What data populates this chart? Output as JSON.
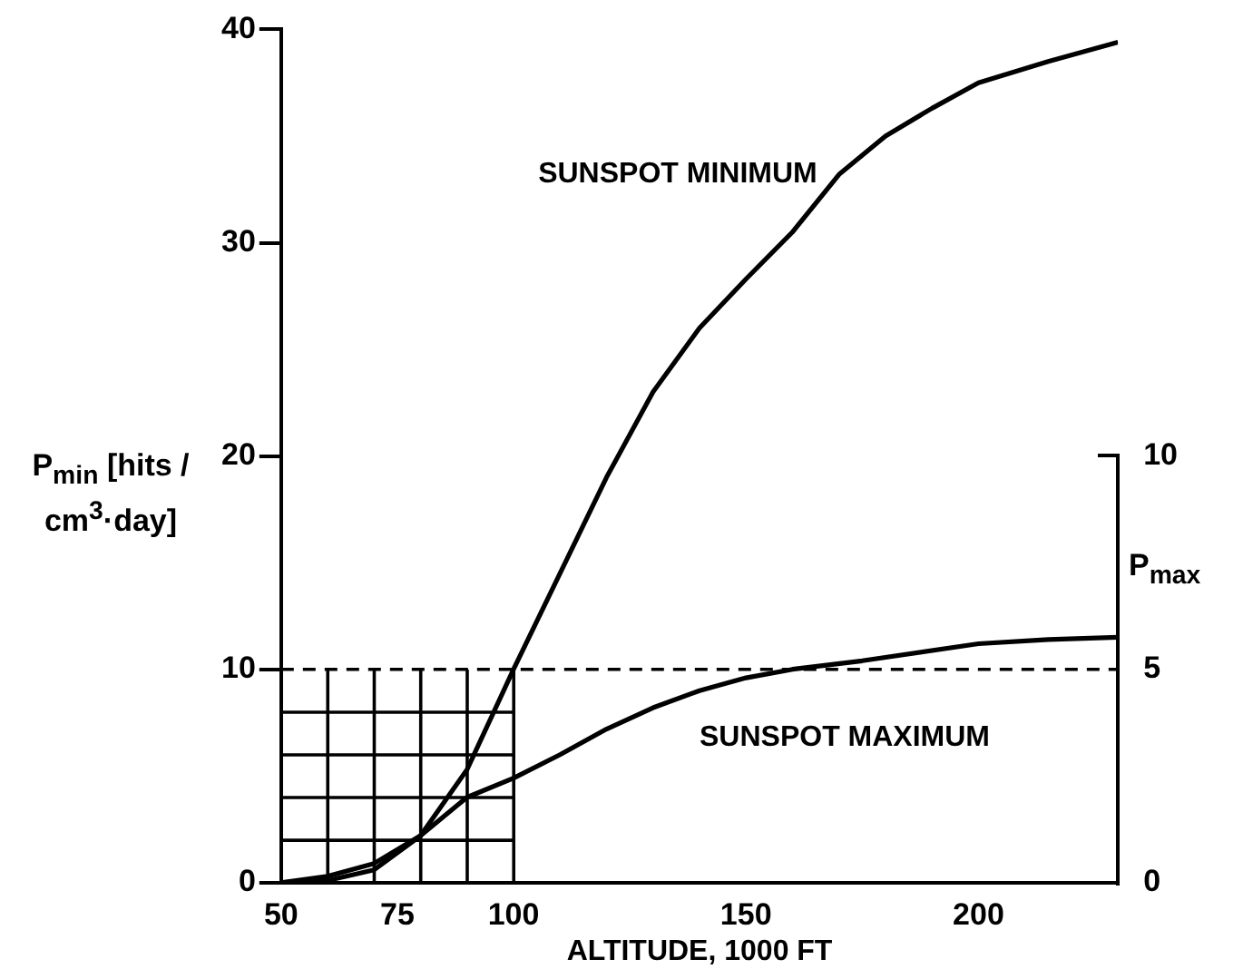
{
  "chart_data": {
    "type": "line",
    "xlabel": "ALTITUDE, 1000 FT",
    "ylabel": "P$_{min}$ [hits / cm$^{3}$·day]",
    "y2label": "P$_{max}$",
    "xlim": [
      50,
      230
    ],
    "xticks": [
      50,
      75,
      100,
      150,
      200
    ],
    "ylim": [
      0,
      40
    ],
    "yticks": [
      0,
      10,
      20,
      30,
      40
    ],
    "y2lim": [
      0,
      20
    ],
    "y2ticks": [
      0,
      5,
      10
    ],
    "series": [
      {
        "name": "SUNSPOT MINIMUM",
        "color": "#000000",
        "x": [
          50,
          60,
          70,
          80,
          90,
          100,
          110,
          120,
          130,
          140,
          150,
          160,
          170,
          180,
          190,
          200,
          215,
          230
        ],
        "values": [
          0,
          0.1,
          0.6,
          2.2,
          5.3,
          10,
          14.5,
          19,
          23,
          26,
          28.3,
          30.5,
          33.2,
          35,
          36.3,
          37.5,
          38.5,
          39.4
        ]
      },
      {
        "name": "SUNSPOT MAXIMUM",
        "color": "#000000",
        "axis": "y2",
        "x": [
          50,
          60,
          70,
          80,
          90,
          100,
          110,
          120,
          130,
          140,
          150,
          160,
          175,
          200,
          215,
          230
        ],
        "values": [
          0,
          0.15,
          0.45,
          1.1,
          2.0,
          2.45,
          3.0,
          3.6,
          4.1,
          4.5,
          4.8,
          5.0,
          5.2,
          5.6,
          5.7,
          5.75
        ]
      }
    ],
    "ref_lines": [
      {
        "axis": "y",
        "value": 10,
        "line_style": "dashed",
        "color": "#000000"
      }
    ],
    "grid": false,
    "legend": false,
    "marker": "none",
    "line_style": "solid"
  }
}
